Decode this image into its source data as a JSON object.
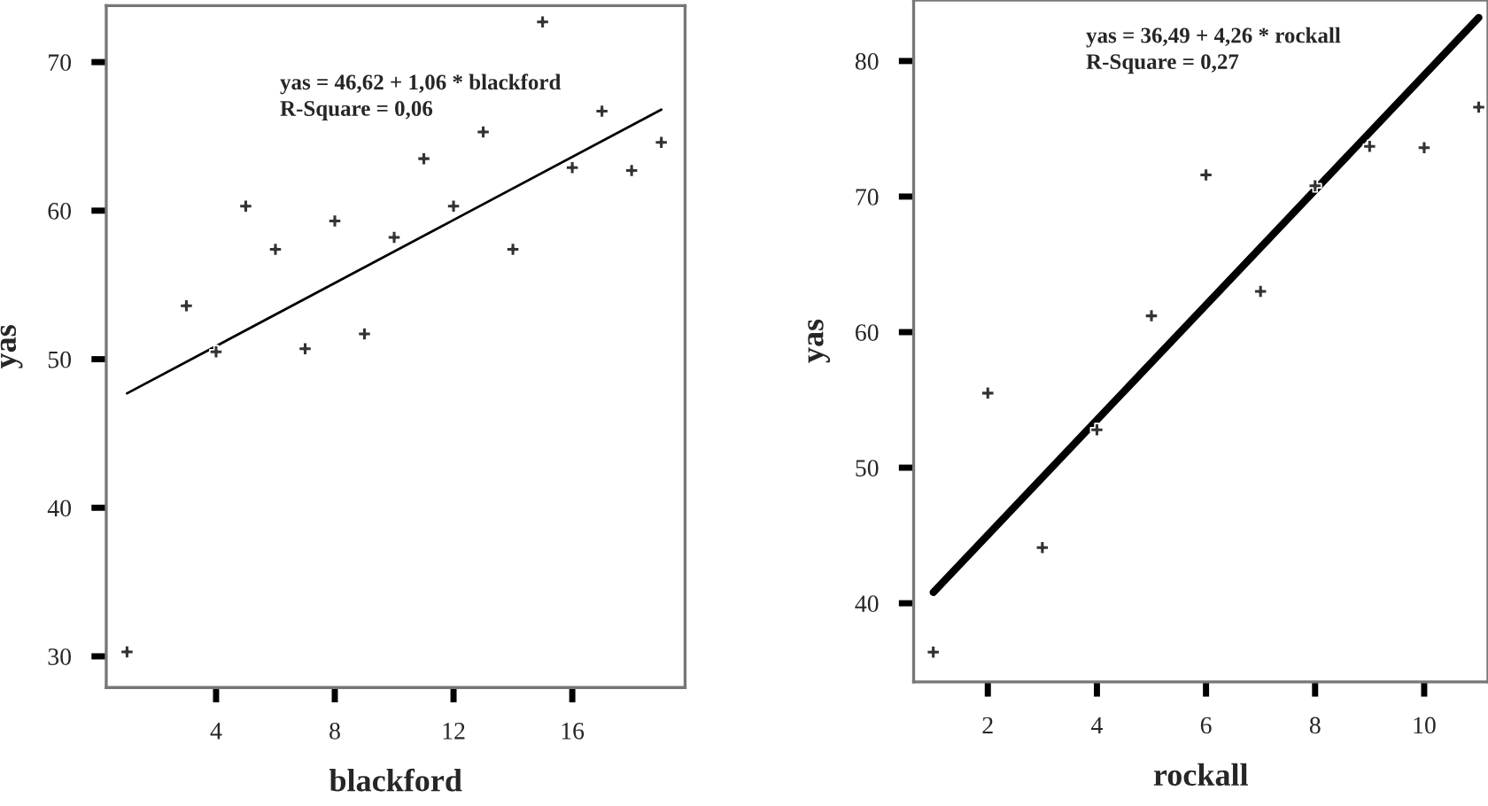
{
  "chart_data": [
    {
      "type": "scatter",
      "xlabel": "blackford",
      "ylabel": "yas",
      "xlim": [
        0.3,
        19.8
      ],
      "ylim": [
        27.9,
        73.8
      ],
      "xticks": [
        4,
        8,
        12,
        16
      ],
      "yticks": [
        30,
        40,
        50,
        60,
        70
      ],
      "grid": false,
      "legend": false,
      "marker": "cross",
      "annotations": [
        "yas = 46,62 + 1,06 * blackford\nR-Square = 0,06"
      ],
      "series": [
        {
          "color": "#333333",
          "x": [
            1,
            3,
            4,
            5,
            6,
            7,
            8,
            9,
            10,
            11,
            12,
            13,
            14,
            15,
            16,
            17,
            18,
            19
          ],
          "values": [
            30.3,
            53.6,
            50.5,
            60.3,
            57.4,
            50.7,
            59.3,
            51.7,
            58.2,
            63.5,
            60.3,
            65.3,
            57.4,
            72.7,
            62.9,
            66.7,
            62.7,
            64.6
          ]
        },
        {
          "type": "line",
          "color": "#000000",
          "marker": "none",
          "x": [
            1,
            19
          ],
          "values": [
            47.7,
            66.8
          ]
        }
      ]
    },
    {
      "type": "scatter",
      "xlabel": "rockall",
      "ylabel": "yas",
      "xlim": [
        0.64,
        11.17
      ],
      "ylim": [
        34.2,
        84.5
      ],
      "xticks": [
        2,
        4,
        6,
        8,
        10
      ],
      "yticks": [
        40,
        50,
        60,
        70,
        80
      ],
      "grid": false,
      "legend": false,
      "marker": "cross",
      "annotations": [
        "yas = 36,49 + 4,26 * rockall\nR-Square = 0,27"
      ],
      "series": [
        {
          "color": "#333333",
          "x": [
            1,
            2,
            3,
            4,
            5,
            6,
            7,
            8,
            9,
            10,
            11
          ],
          "values": [
            36.4,
            55.5,
            44.1,
            52.8,
            61.2,
            71.6,
            63.0,
            70.8,
            73.7,
            73.6,
            76.6
          ]
        },
        {
          "type": "line",
          "color": "#000000",
          "marker": "none",
          "x": [
            1,
            11
          ],
          "values": [
            40.8,
            83.2
          ]
        }
      ]
    }
  ]
}
